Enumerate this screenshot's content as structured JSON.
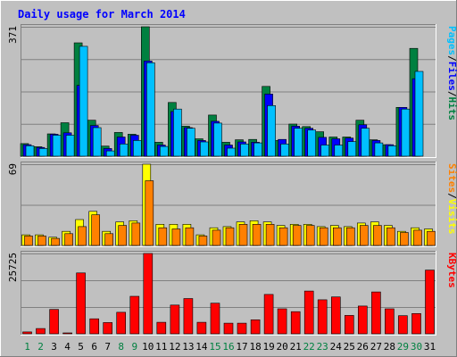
{
  "chart_data": {
    "type": "bar",
    "title": "Daily usage for March 2014",
    "categories": [
      "1",
      "2",
      "3",
      "4",
      "5",
      "6",
      "7",
      "8",
      "9",
      "10",
      "11",
      "12",
      "13",
      "14",
      "15",
      "16",
      "17",
      "18",
      "19",
      "20",
      "21",
      "22",
      "23",
      "24",
      "25",
      "26",
      "27",
      "28",
      "29",
      "30",
      "31"
    ],
    "weekend_days": [
      "1",
      "2",
      "8",
      "9",
      "15",
      "16",
      "22",
      "23",
      "29",
      "30"
    ],
    "panels": [
      {
        "ymax_label": "371",
        "ymax": 371,
        "side_labels": [
          "Pages",
          "/",
          "Files",
          "/",
          "Hits"
        ],
        "side_colors": [
          "#00c0ff",
          "#000000",
          "#0000ff",
          "#000000",
          "#008040"
        ],
        "series": [
          {
            "name": "Hits",
            "color": "#008040",
            "values": [
              36,
              27,
              64,
              96,
              325,
              103,
              29,
              68,
              63,
              371,
              40,
              154,
              86,
              50,
              118,
              40,
              47,
              48,
              200,
              45,
              92,
              85,
              70,
              55,
              55,
              103,
              47,
              33,
              140,
              309,
              0
            ]
          },
          {
            "name": "Files",
            "color": "#0000ff",
            "values": [
              33,
              25,
              63,
              67,
              203,
              88,
              22,
              55,
              60,
              273,
              32,
              128,
              82,
              45,
              100,
              32,
              41,
              40,
              178,
              48,
              86,
              80,
              54,
              50,
              52,
              90,
              45,
              33,
              140,
              222,
              0
            ]
          },
          {
            "name": "Pages",
            "color": "#00c0ff",
            "values": [
              30,
              22,
              60,
              60,
              315,
              82,
              15,
              35,
              45,
              268,
              28,
              135,
              80,
              41,
              95,
              23,
              35,
              38,
              145,
              35,
              80,
              75,
              32,
              32,
              42,
              80,
              38,
              30,
              135,
              243,
              0
            ]
          }
        ]
      },
      {
        "ymax_label": "69",
        "ymax": 69,
        "side_labels": [
          "Sites",
          "/",
          "Visits"
        ],
        "side_colors": [
          "#ff8000",
          "#000000",
          "#ffff00"
        ],
        "series": [
          {
            "name": "Visits",
            "color": "#ffff00",
            "values": [
              9,
              9,
              7,
              12,
              22,
              29,
              12,
              20,
              21,
              69,
              18,
              18,
              18,
              9,
              15,
              16,
              20,
              21,
              20,
              17,
              18,
              18,
              16,
              17,
              16,
              19,
              20,
              17,
              12,
              15,
              14
            ]
          },
          {
            "name": "Sites",
            "color": "#ff8000",
            "values": [
              8,
              8,
              6,
              10,
              16,
              26,
              10,
              17,
              19,
              55,
              15,
              14,
              15,
              8,
              13,
              15,
              18,
              18,
              18,
              15,
              17,
              17,
              15,
              15,
              15,
              17,
              17,
              15,
              11,
              13,
              12
            ]
          }
        ]
      },
      {
        "ymax_label": "25725",
        "ymax": 25725,
        "side_labels": [
          "KBytes"
        ],
        "side_colors": [
          "#ff0000"
        ],
        "series": [
          {
            "name": "KBytes",
            "color": "#ff0000",
            "values": [
              600,
              1700,
              7800,
              300,
              19500,
              4800,
              3600,
              6900,
              12000,
              25725,
              3700,
              9200,
              11300,
              3700,
              9800,
              3400,
              3400,
              4500,
              12600,
              8000,
              7100,
              13700,
              10900,
              11800,
              5900,
              8900,
              13400,
              8000,
              5800,
              6500,
              20400
            ]
          }
        ]
      }
    ]
  }
}
